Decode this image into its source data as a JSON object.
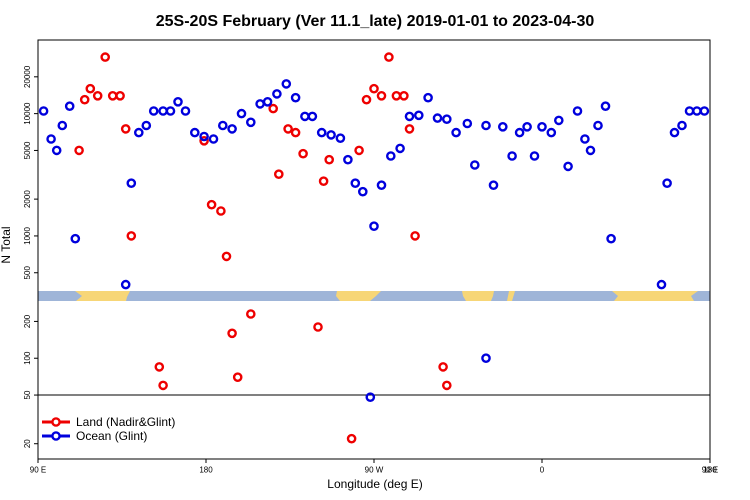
{
  "chart_data": {
    "type": "scatter",
    "title": "25S-20S February (Ver 11.1_late)   2019-01-01 to 2023-04-30",
    "xlabel": "Longitude (deg E)",
    "ylabel": "N Total",
    "y_scale": "log",
    "xlim": [
      90,
      450
    ],
    "ylim": [
      15,
      40000
    ],
    "x_ticks": [
      {
        "value": 90,
        "label": "90 E"
      },
      {
        "value": 180,
        "label": "180"
      },
      {
        "value": 270,
        "label": "90 W"
      },
      {
        "value": 360,
        "label": "0"
      },
      {
        "value": 450,
        "label": "90 E"
      },
      {
        "value": 540,
        "label": "180"
      }
    ],
    "y_ticks": [
      20,
      50,
      100,
      200,
      500,
      1000,
      2000,
      5000,
      10000,
      20000
    ],
    "reference_line_y": 50,
    "legend_position": "bottom-left",
    "series": [
      {
        "name": "Land (Nadir&Glint)",
        "color": "#ee0000",
        "points": [
          [
            112,
            5000
          ],
          [
            115,
            13000
          ],
          [
            118,
            16000
          ],
          [
            122,
            14000
          ],
          [
            126,
            29000
          ],
          [
            130,
            14000
          ],
          [
            134,
            14000
          ],
          [
            137,
            7500
          ],
          [
            140,
            1000
          ],
          [
            155,
            85
          ],
          [
            157,
            60
          ],
          [
            179,
            6000
          ],
          [
            183,
            1800
          ],
          [
            188,
            1600
          ],
          [
            191,
            680
          ],
          [
            194,
            160
          ],
          [
            197,
            70
          ],
          [
            204,
            230
          ],
          [
            216,
            11000
          ],
          [
            219,
            3200
          ],
          [
            224,
            7500
          ],
          [
            228,
            7000
          ],
          [
            232,
            4700
          ],
          [
            240,
            180
          ],
          [
            243,
            2800
          ],
          [
            246,
            4200
          ],
          [
            258,
            22
          ],
          [
            262,
            5000
          ],
          [
            266,
            13000
          ],
          [
            270,
            16000
          ],
          [
            274,
            14000
          ],
          [
            278,
            29000
          ],
          [
            282,
            14000
          ],
          [
            286,
            14000
          ],
          [
            289,
            7500
          ],
          [
            292,
            1000
          ],
          [
            307,
            85
          ],
          [
            309,
            60
          ]
        ]
      },
      {
        "name": "Ocean (Glint)",
        "color": "#0000dd",
        "points": [
          [
            93,
            10500
          ],
          [
            97,
            6200
          ],
          [
            100,
            5000
          ],
          [
            103,
            8000
          ],
          [
            107,
            11500
          ],
          [
            110,
            950
          ],
          [
            137,
            400
          ],
          [
            140,
            2700
          ],
          [
            144,
            7000
          ],
          [
            148,
            8000
          ],
          [
            152,
            10500
          ],
          [
            157,
            10500
          ],
          [
            161,
            10500
          ],
          [
            165,
            12500
          ],
          [
            169,
            10500
          ],
          [
            174,
            7000
          ],
          [
            179,
            6500
          ],
          [
            184,
            6200
          ],
          [
            189,
            8000
          ],
          [
            194,
            7500
          ],
          [
            199,
            10000
          ],
          [
            204,
            8500
          ],
          [
            209,
            12000
          ],
          [
            213,
            12500
          ],
          [
            218,
            14500
          ],
          [
            223,
            17500
          ],
          [
            228,
            13500
          ],
          [
            233,
            9500
          ],
          [
            237,
            9500
          ],
          [
            242,
            7000
          ],
          [
            247,
            6700
          ],
          [
            252,
            6300
          ],
          [
            256,
            4200
          ],
          [
            260,
            2700
          ],
          [
            264,
            2300
          ],
          [
            270,
            1200
          ],
          [
            268,
            48
          ],
          [
            274,
            2600
          ],
          [
            279,
            4500
          ],
          [
            284,
            5200
          ],
          [
            289,
            9500
          ],
          [
            294,
            9700
          ],
          [
            299,
            13500
          ],
          [
            304,
            9200
          ],
          [
            309,
            9000
          ],
          [
            314,
            7000
          ],
          [
            320,
            8300
          ],
          [
            324,
            3800
          ],
          [
            330,
            8000
          ],
          [
            334,
            2600
          ],
          [
            339,
            7800
          ],
          [
            344,
            4500
          ],
          [
            348,
            7000
          ],
          [
            352,
            7800
          ],
          [
            356,
            4500
          ],
          [
            360,
            7800
          ],
          [
            365,
            7000
          ],
          [
            369,
            8800
          ],
          [
            374,
            3700
          ],
          [
            379,
            10500
          ],
          [
            383,
            6200
          ],
          [
            386,
            5000
          ],
          [
            390,
            8000
          ],
          [
            394,
            11500
          ],
          [
            397,
            950
          ],
          [
            424,
            400
          ],
          [
            427,
            2700
          ],
          [
            431,
            7000
          ],
          [
            435,
            8000
          ],
          [
            439,
            10500
          ],
          [
            443,
            10500
          ],
          [
            447,
            10500
          ],
          [
            330,
            100
          ]
        ]
      }
    ]
  }
}
